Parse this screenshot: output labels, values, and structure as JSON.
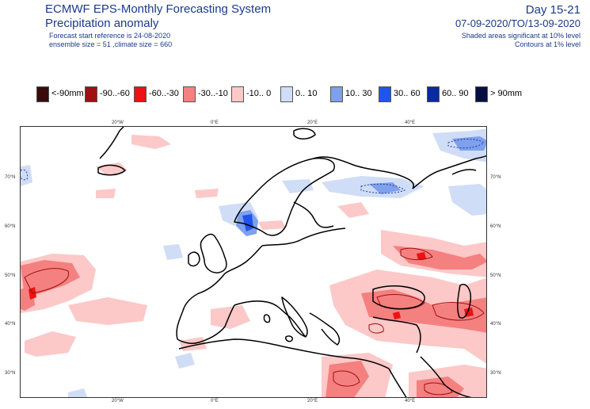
{
  "header": {
    "title_line1": "ECMWF EPS-Monthly Forecasting System",
    "title_line2": "Precipitation anomaly",
    "meta_line1": "Forecast start reference is 24-08-2020",
    "meta_line2": "ensemble size = 51  ,climate size = 660",
    "day_range": "Day 15-21",
    "date_range": "07-09-2020/TO/13-09-2020",
    "sig_line1": "Shaded areas significant at 10% level",
    "sig_line2": "Contours at 1% level"
  },
  "legend": [
    {
      "label": "<-90mm",
      "color": "#3b0a0a"
    },
    {
      "label": "-90..-60",
      "color": "#a01010"
    },
    {
      "label": "-60..-30",
      "color": "#ee1111"
    },
    {
      "label": "-30..-10",
      "color": "#f58080"
    },
    {
      "label": "-10..  0",
      "color": "#fcc8c8"
    },
    {
      "label": "0..  10",
      "color": "#d0ddf7"
    },
    {
      "label": "10..  30",
      "color": "#7fa0ec"
    },
    {
      "label": "30..  60",
      "color": "#1f55ee"
    },
    {
      "label": "60..  90",
      "color": "#0a2aa0"
    },
    {
      "label": ">  90mm",
      "color": "#061040"
    }
  ],
  "map": {
    "lon_ticks_top": [
      "20°W",
      "0°E",
      "20°E",
      "40°E"
    ],
    "lon_ticks_bottom": [
      "20°W",
      "0°E",
      "20°E",
      "40°E"
    ],
    "lat_ticks_left": [
      "70°N",
      "60°N",
      "50°N",
      "40°N",
      "30°N"
    ],
    "lat_ticks_right": [
      "70°N",
      "60°N",
      "50°N",
      "40°N",
      "30°N"
    ]
  }
}
